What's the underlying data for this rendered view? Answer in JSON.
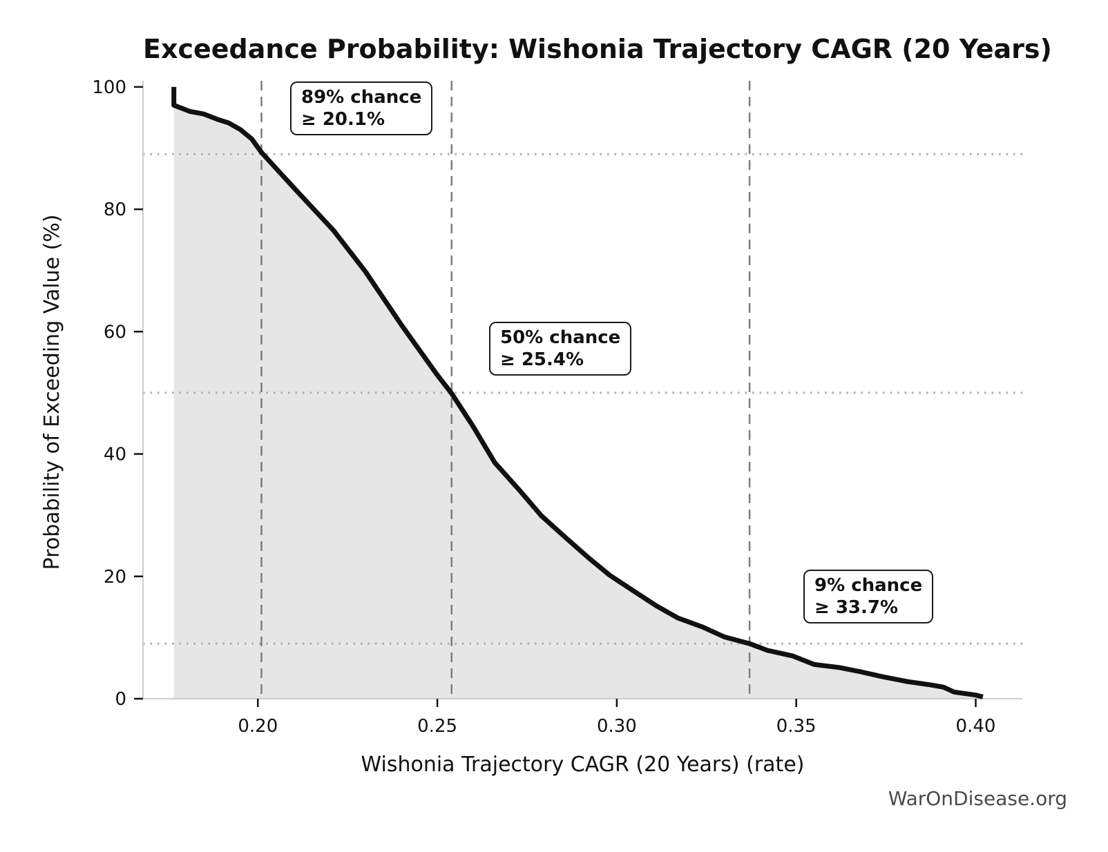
{
  "watermark": "WarOnDisease.org",
  "colors": {
    "curve": "#111111",
    "area_fill": "#e6e6e6",
    "dashed_reference": "#7d7d7d",
    "dotted_reference": "#aaaaaa",
    "spine": "#cccccc",
    "tick": "#111111",
    "tick_label": "#111111",
    "watermark": "#4a4a4a",
    "annotation_border": "#1a1a1a",
    "annotation_background": "#ffffff"
  },
  "chart_data": {
    "type": "line",
    "title": "Exceedance Probability: Wishonia Trajectory CAGR (20 Years)",
    "xlabel": "Wishonia Trajectory CAGR (20 Years) (rate)",
    "ylabel": "Probability of Exceeding Value (%)",
    "xlim": [
      0.168,
      0.413
    ],
    "ylim": [
      0,
      101
    ],
    "x_ticks": [
      0.2,
      0.25,
      0.3,
      0.35,
      0.4
    ],
    "x_tick_labels": [
      "0.20",
      "0.25",
      "0.30",
      "0.35",
      "0.40"
    ],
    "y_ticks": [
      0,
      20,
      40,
      60,
      80,
      100
    ],
    "y_tick_labels": [
      "0",
      "20",
      "40",
      "60",
      "80",
      "100"
    ],
    "grid": false,
    "legend": "none",
    "fill_under_curve": true,
    "series": [
      {
        "name": "exceedance-probability-curve",
        "points": [
          [
            0.1766,
            100.0
          ],
          [
            0.1766,
            97.0
          ],
          [
            0.181,
            96.0
          ],
          [
            0.1848,
            95.6
          ],
          [
            0.1887,
            94.7
          ],
          [
            0.1919,
            94.1
          ],
          [
            0.1952,
            93.0
          ],
          [
            0.1983,
            91.5
          ],
          [
            0.201,
            89.3
          ],
          [
            0.2063,
            85.9
          ],
          [
            0.211,
            82.9
          ],
          [
            0.221,
            76.6
          ],
          [
            0.23,
            69.8
          ],
          [
            0.24,
            61.1
          ],
          [
            0.25,
            52.9
          ],
          [
            0.254,
            49.9
          ],
          [
            0.26,
            44.5
          ],
          [
            0.266,
            38.6
          ],
          [
            0.273,
            34.0
          ],
          [
            0.279,
            29.9
          ],
          [
            0.286,
            26.2
          ],
          [
            0.292,
            23.1
          ],
          [
            0.298,
            20.2
          ],
          [
            0.305,
            17.5
          ],
          [
            0.311,
            15.2
          ],
          [
            0.317,
            13.2
          ],
          [
            0.324,
            11.7
          ],
          [
            0.33,
            10.1
          ],
          [
            0.337,
            9.0
          ],
          [
            0.342,
            7.9
          ],
          [
            0.349,
            7.0
          ],
          [
            0.355,
            5.6
          ],
          [
            0.362,
            5.1
          ],
          [
            0.368,
            4.4
          ],
          [
            0.374,
            3.6
          ],
          [
            0.381,
            2.8
          ],
          [
            0.387,
            2.3
          ],
          [
            0.391,
            1.9
          ],
          [
            0.394,
            1.1
          ],
          [
            0.4,
            0.6
          ],
          [
            0.402,
            0.3
          ]
        ]
      }
    ],
    "reference_lines": {
      "vertical_x": [
        0.201,
        0.254,
        0.337
      ],
      "horizontal_p": [
        89,
        50,
        9
      ]
    },
    "annotations": [
      {
        "lines": [
          "89% chance",
          "≥ 20.1%"
        ],
        "probability_pct": 89,
        "threshold_rate": 0.201
      },
      {
        "lines": [
          "50% chance",
          "≥ 25.4%"
        ],
        "probability_pct": 50,
        "threshold_rate": 0.254
      },
      {
        "lines": [
          "9% chance",
          "≥ 33.7%"
        ],
        "probability_pct": 9,
        "threshold_rate": 0.337
      }
    ]
  }
}
